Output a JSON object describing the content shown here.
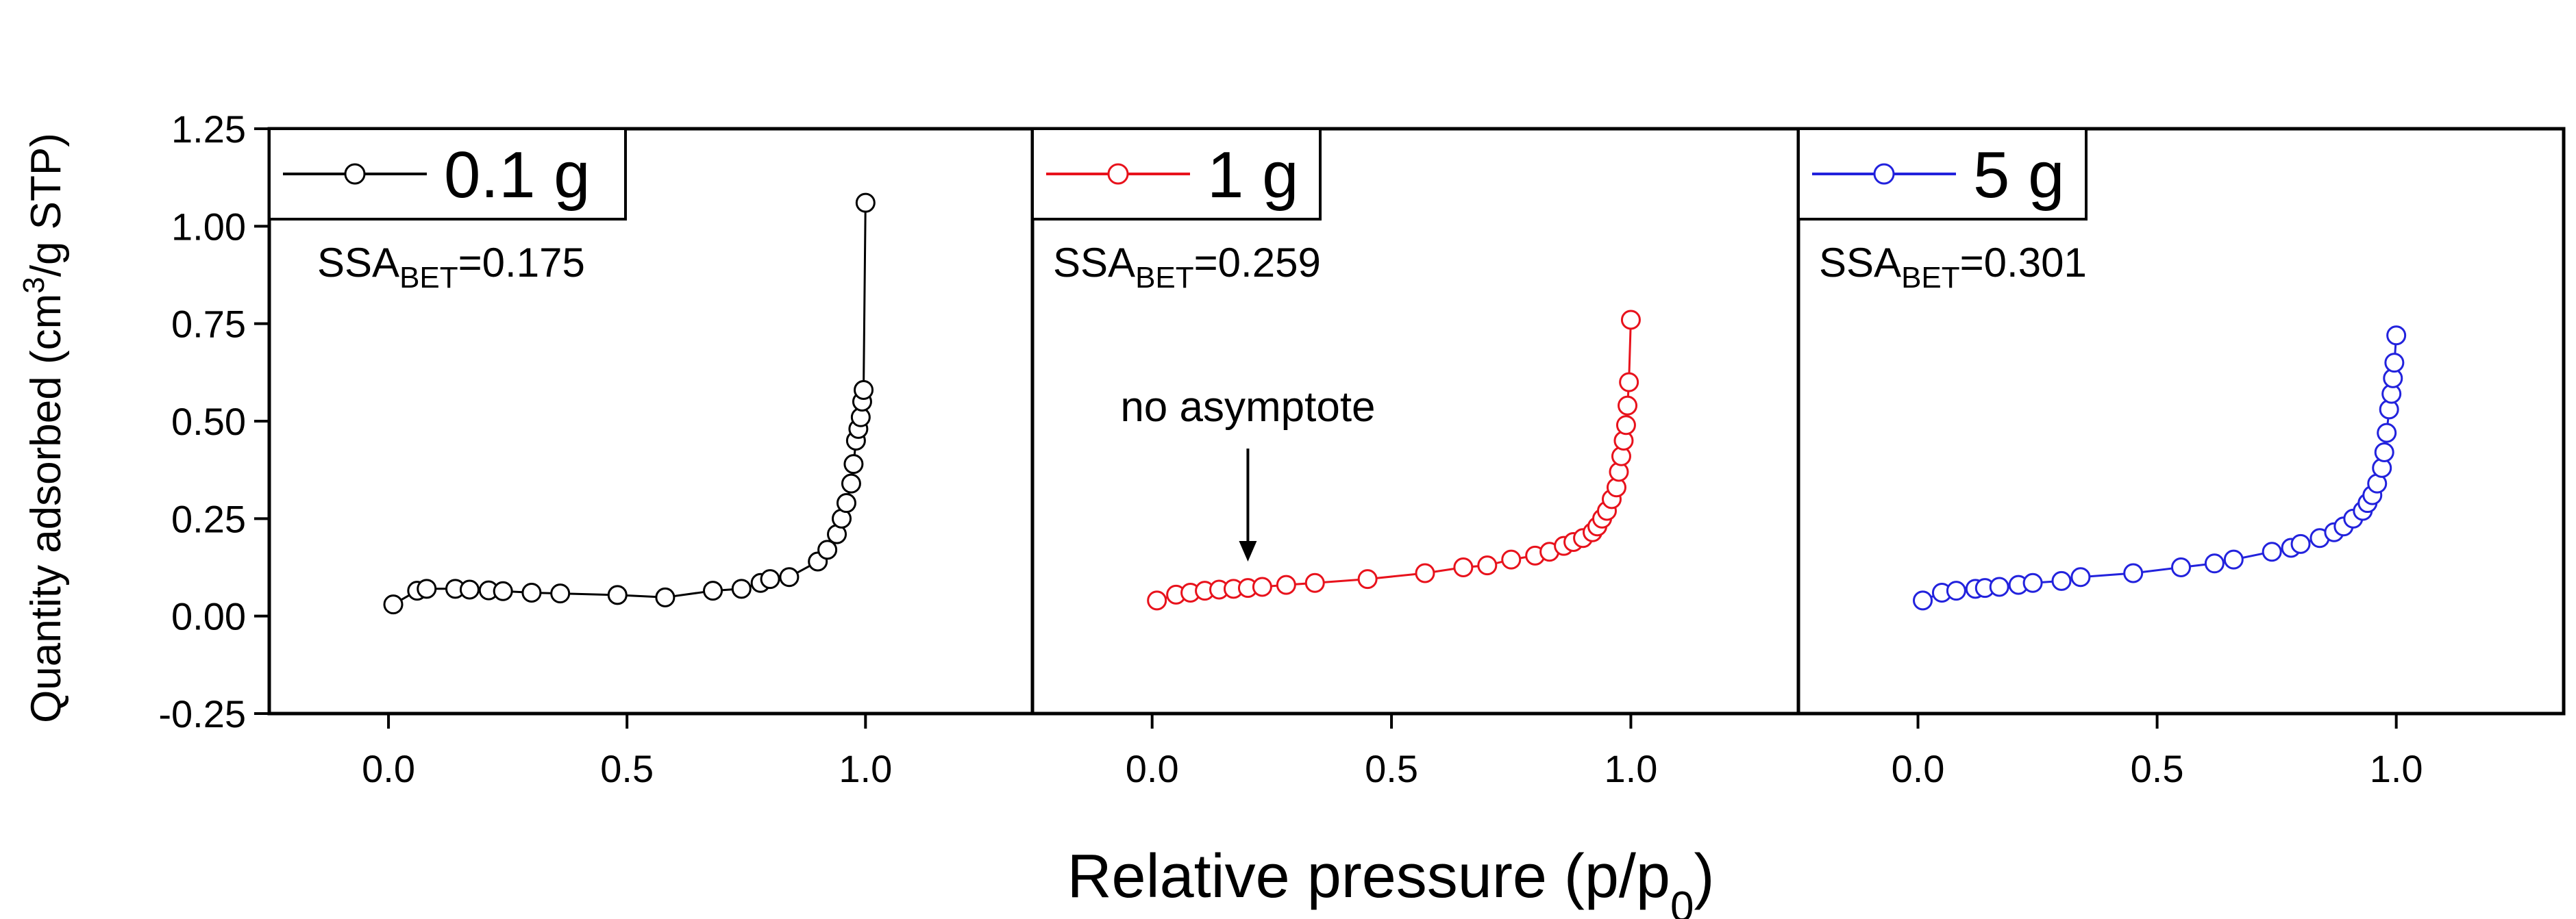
{
  "chart_data": {
    "type": "scatter",
    "title": "",
    "xlabel": "Relative pressure (p/p",
    "xlabel_sub": "0",
    "xlabel_end": ")",
    "ylabel": "Quantity adsorbed (cm",
    "ylabel_sup": "3",
    "ylabel_end": "/g STP)",
    "xlim": [
      -0.25,
      1.35
    ],
    "ylim": [
      -0.25,
      1.25
    ],
    "x_ticks": [
      0.0,
      0.5,
      1.0
    ],
    "x_tick_labels": [
      "0.0",
      "0.5",
      "1.0"
    ],
    "y_ticks": [
      -0.25,
      0.0,
      0.25,
      0.5,
      0.75,
      1.0,
      1.25
    ],
    "y_tick_labels": [
      "-0.25",
      "0.00",
      "0.25",
      "0.50",
      "0.75",
      "1.00",
      "1.25"
    ],
    "panels": [
      {
        "name": "0.1 g",
        "color": "#000000",
        "ssa_label": "SSA",
        "ssa_sub": "BET",
        "ssa_value": "=0.175",
        "annotation": null,
        "x": [
          0.01,
          0.06,
          0.08,
          0.14,
          0.17,
          0.21,
          0.24,
          0.3,
          0.36,
          0.48,
          0.58,
          0.68,
          0.74,
          0.78,
          0.8,
          0.84,
          0.9,
          0.92,
          0.94,
          0.95,
          0.96,
          0.97,
          0.975,
          0.98,
          0.985,
          0.99,
          0.993,
          0.996,
          1.0
        ],
        "y": [
          0.03,
          0.065,
          0.07,
          0.07,
          0.068,
          0.066,
          0.064,
          0.06,
          0.058,
          0.054,
          0.048,
          0.065,
          0.07,
          0.085,
          0.095,
          0.1,
          0.14,
          0.17,
          0.21,
          0.25,
          0.29,
          0.34,
          0.39,
          0.45,
          0.48,
          0.51,
          0.55,
          0.58,
          1.06
        ]
      },
      {
        "name": "1 g",
        "color": "#e8121c",
        "ssa_label": "SSA",
        "ssa_sub": "BET",
        "ssa_value": "=0.259",
        "annotation": {
          "text": "no asymptote",
          "x": 0.2,
          "y_text": 0.5,
          "y_tip": 0.14
        },
        "x": [
          0.01,
          0.05,
          0.08,
          0.11,
          0.14,
          0.17,
          0.2,
          0.23,
          0.28,
          0.34,
          0.45,
          0.57,
          0.65,
          0.7,
          0.75,
          0.8,
          0.83,
          0.86,
          0.88,
          0.9,
          0.92,
          0.93,
          0.94,
          0.95,
          0.96,
          0.97,
          0.975,
          0.98,
          0.985,
          0.99,
          0.993,
          0.996,
          1.0
        ],
        "y": [
          0.04,
          0.055,
          0.06,
          0.065,
          0.068,
          0.07,
          0.072,
          0.075,
          0.08,
          0.085,
          0.095,
          0.11,
          0.125,
          0.13,
          0.145,
          0.155,
          0.165,
          0.18,
          0.19,
          0.2,
          0.215,
          0.23,
          0.25,
          0.27,
          0.3,
          0.33,
          0.37,
          0.41,
          0.45,
          0.49,
          0.54,
          0.6,
          0.76
        ]
      },
      {
        "name": "5 g",
        "color": "#2222dd",
        "ssa_label": "SSA",
        "ssa_sub": "BET",
        "ssa_value": "=0.301",
        "annotation": null,
        "x": [
          0.01,
          0.05,
          0.08,
          0.12,
          0.14,
          0.17,
          0.21,
          0.24,
          0.3,
          0.34,
          0.45,
          0.55,
          0.62,
          0.66,
          0.74,
          0.78,
          0.8,
          0.84,
          0.87,
          0.89,
          0.91,
          0.93,
          0.94,
          0.95,
          0.96,
          0.97,
          0.975,
          0.98,
          0.985,
          0.99,
          0.993,
          0.996,
          1.0
        ],
        "y": [
          0.04,
          0.06,
          0.065,
          0.07,
          0.072,
          0.075,
          0.08,
          0.085,
          0.09,
          0.1,
          0.11,
          0.125,
          0.135,
          0.145,
          0.165,
          0.175,
          0.185,
          0.2,
          0.215,
          0.23,
          0.25,
          0.27,
          0.29,
          0.31,
          0.34,
          0.38,
          0.42,
          0.47,
          0.53,
          0.57,
          0.61,
          0.65,
          0.72
        ]
      }
    ]
  }
}
